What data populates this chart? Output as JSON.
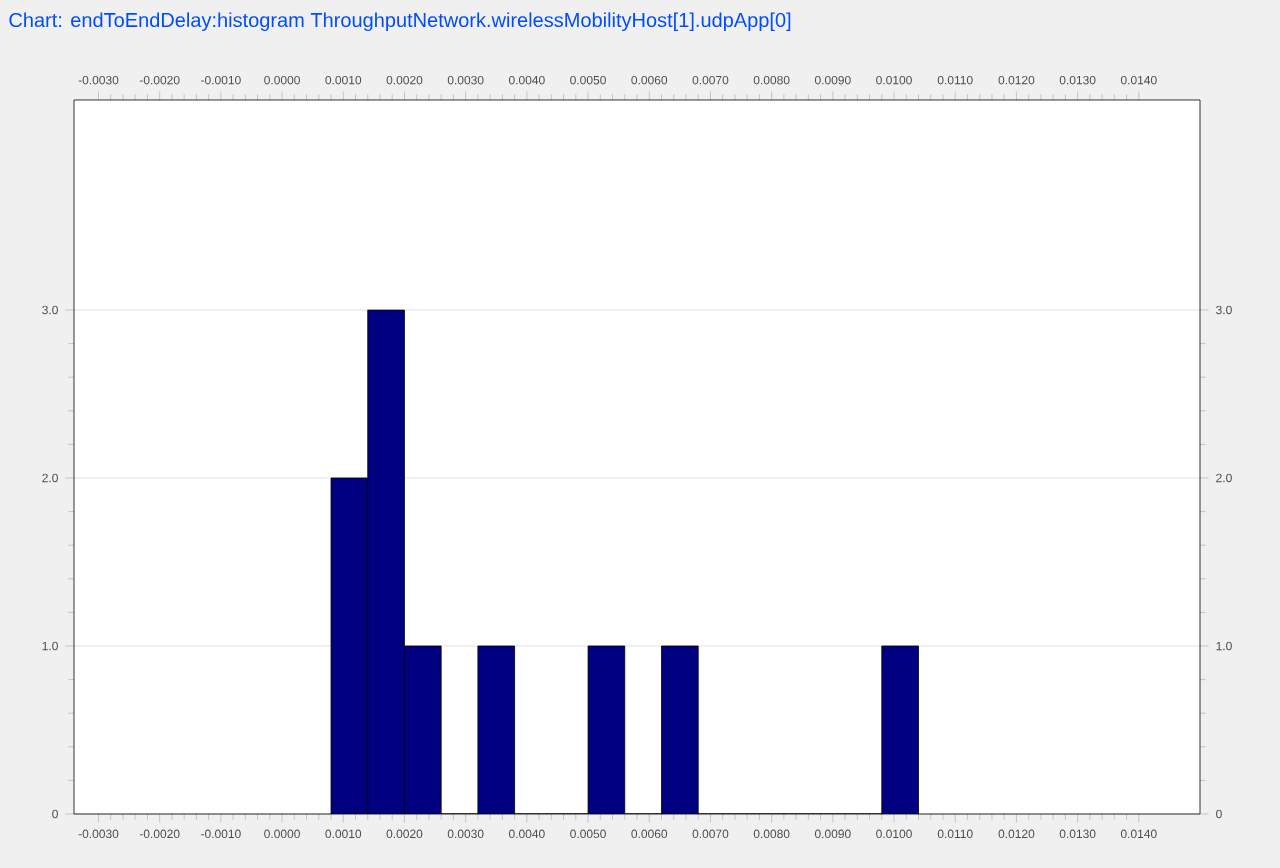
{
  "chart_data": {
    "type": "histogram",
    "title": "Chart: endToEndDelay:histogram ThroughputNetwork.wirelessMobilityHost[1].udpApp[0]",
    "bins": [
      0.0008,
      0.0014,
      0.002,
      0.0026,
      0.0032,
      0.0038,
      0.0044,
      0.005,
      0.0056,
      0.0062,
      0.0068,
      0.0074,
      0.008,
      0.0086,
      0.0092,
      0.0098,
      0.0104
    ],
    "values": [
      2,
      3,
      1,
      0,
      1,
      0,
      0,
      1,
      0,
      1,
      0,
      0,
      0,
      0,
      0,
      1
    ],
    "color": "#000080",
    "xlim": [
      -0.0034,
      0.015
    ],
    "xticks": [
      {
        "value": -0.003,
        "label": "-0.0030"
      },
      {
        "value": -0.002,
        "label": "-0.0020"
      },
      {
        "value": -0.001,
        "label": "-0.0010"
      },
      {
        "value": 0,
        "label": "0.0000"
      },
      {
        "value": 0.001,
        "label": "0.0010"
      },
      {
        "value": 0.002,
        "label": "0.0020"
      },
      {
        "value": 0.003,
        "label": "0.0030"
      },
      {
        "value": 0.004,
        "label": "0.0040"
      },
      {
        "value": 0.005,
        "label": "0.0050"
      },
      {
        "value": 0.006,
        "label": "0.0060"
      },
      {
        "value": 0.007,
        "label": "0.0070"
      },
      {
        "value": 0.008,
        "label": "0.0080"
      },
      {
        "value": 0.009,
        "label": "0.0090"
      },
      {
        "value": 0.01,
        "label": "0.0100"
      },
      {
        "value": 0.011,
        "label": "0.0110"
      },
      {
        "value": 0.012,
        "label": "0.0120"
      },
      {
        "value": 0.013,
        "label": "0.0130"
      },
      {
        "value": 0.014,
        "label": "0.0140"
      }
    ],
    "x2lim": [
      -0.0034,
      0.015
    ],
    "x2ticks": [
      {
        "value": -0.003,
        "label": "-0.0030"
      },
      {
        "value": -0.002,
        "label": "-0.0020"
      },
      {
        "value": -0.001,
        "label": "-0.0010"
      },
      {
        "value": 0,
        "label": "0.0000"
      },
      {
        "value": 0.001,
        "label": "0.0010"
      },
      {
        "value": 0.002,
        "label": "0.0020"
      },
      {
        "value": 0.003,
        "label": "0.0030"
      },
      {
        "value": 0.004,
        "label": "0.0040"
      },
      {
        "value": 0.005,
        "label": "0.0050"
      },
      {
        "value": 0.006,
        "label": "0.0060"
      },
      {
        "value": 0.007,
        "label": "0.0070"
      },
      {
        "value": 0.008,
        "label": "0.0080"
      },
      {
        "value": 0.009,
        "label": "0.0090"
      },
      {
        "value": 0.01,
        "label": "0.0100"
      },
      {
        "value": 0.011,
        "label": "0.0110"
      },
      {
        "value": 0.012,
        "label": "0.0120"
      },
      {
        "value": 0.013,
        "label": "0.0130"
      },
      {
        "value": 0.014,
        "label": "0.0140"
      }
    ],
    "ylim": [
      0,
      4.25
    ],
    "yticks": [
      0,
      {
        "value": 1,
        "label": "1.0"
      },
      {
        "value": 2,
        "label": "2.0"
      },
      {
        "value": 3,
        "label": "3.0"
      }
    ],
    "y2lim": [
      0,
      4.25
    ],
    "y2ticks": [
      0,
      {
        "value": 1,
        "label": "1.0"
      },
      {
        "value": 2,
        "label": "2.0"
      },
      {
        "value": 3,
        "label": "3.0"
      }
    ],
    "grid": "y"
  }
}
